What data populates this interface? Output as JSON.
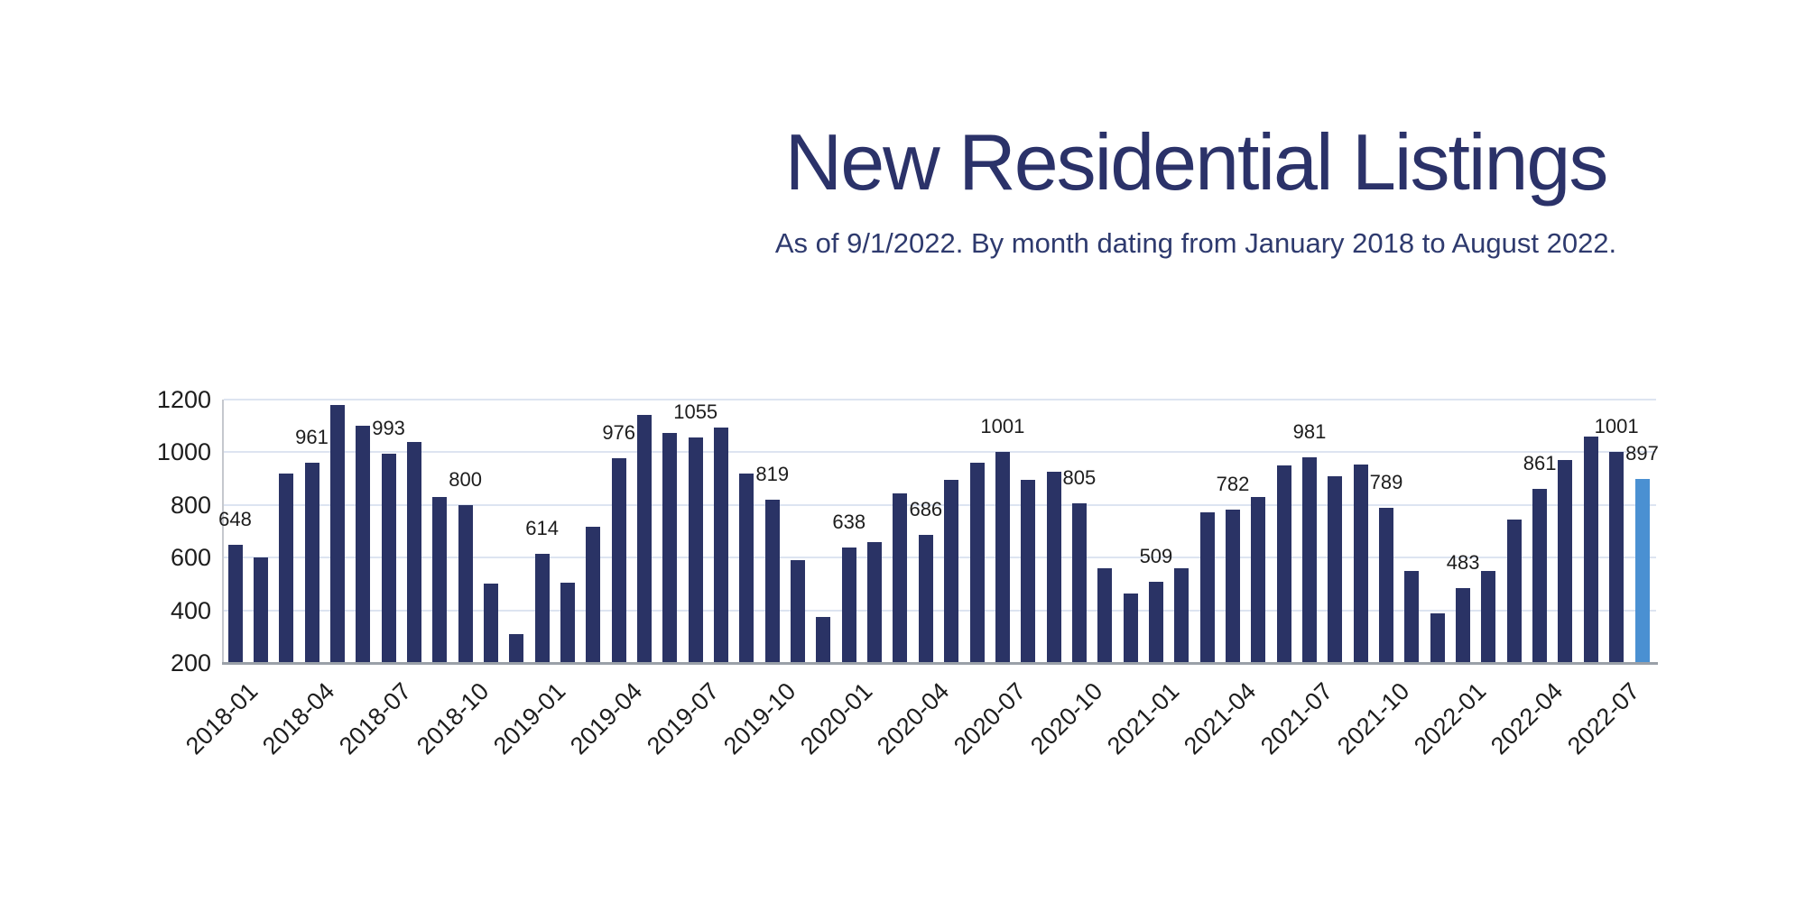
{
  "page": {
    "background": "#ffffff"
  },
  "header": {
    "title": "New Residential Listings",
    "subtitle": "As of 9/1/2022. By month dating from January 2018 to August 2022.",
    "title_color": "#2b3269",
    "subtitle_color": "#2e3a6e"
  },
  "chart_data": {
    "type": "bar",
    "title": "New Residential Listings",
    "subtitle": "As of 9/1/2022. By month dating from January 2018 to August 2022.",
    "x": [
      "2018-01",
      "2018-02",
      "2018-03",
      "2018-04",
      "2018-05",
      "2018-06",
      "2018-07",
      "2018-08",
      "2018-09",
      "2018-10",
      "2018-11",
      "2018-12",
      "2019-01",
      "2019-02",
      "2019-03",
      "2019-04",
      "2019-05",
      "2019-06",
      "2019-07",
      "2019-08",
      "2019-09",
      "2019-10",
      "2019-11",
      "2019-12",
      "2020-01",
      "2020-02",
      "2020-03",
      "2020-04",
      "2020-05",
      "2020-06",
      "2020-07",
      "2020-08",
      "2020-09",
      "2020-10",
      "2020-11",
      "2020-12",
      "2021-01",
      "2021-02",
      "2021-03",
      "2021-04",
      "2021-05",
      "2021-06",
      "2021-07",
      "2021-08",
      "2021-09",
      "2021-10",
      "2021-11",
      "2021-12",
      "2022-01",
      "2022-02",
      "2022-03",
      "2022-04",
      "2022-05",
      "2022-06",
      "2022-07",
      "2022-08"
    ],
    "values": [
      648,
      602,
      920,
      961,
      1180,
      1100,
      993,
      1040,
      830,
      800,
      500,
      310,
      614,
      505,
      718,
      976,
      1143,
      1072,
      1055,
      1095,
      920,
      819,
      590,
      375,
      638,
      660,
      845,
      686,
      895,
      960,
      1001,
      895,
      925,
      805,
      560,
      465,
      509,
      560,
      772,
      782,
      830,
      950,
      981,
      910,
      955,
      789,
      550,
      390,
      483,
      550,
      745,
      861,
      970,
      1058,
      1001,
      897
    ],
    "bar_labels": [
      {
        "index": 0,
        "text": "648"
      },
      {
        "index": 3,
        "text": "961"
      },
      {
        "index": 6,
        "text": "993"
      },
      {
        "index": 9,
        "text": "800"
      },
      {
        "index": 12,
        "text": "614"
      },
      {
        "index": 15,
        "text": "976"
      },
      {
        "index": 18,
        "text": "1055"
      },
      {
        "index": 21,
        "text": "819"
      },
      {
        "index": 24,
        "text": "638"
      },
      {
        "index": 27,
        "text": "686"
      },
      {
        "index": 30,
        "text": "1001"
      },
      {
        "index": 33,
        "text": "805"
      },
      {
        "index": 36,
        "text": "509"
      },
      {
        "index": 39,
        "text": "782"
      },
      {
        "index": 42,
        "text": "981"
      },
      {
        "index": 45,
        "text": "789"
      },
      {
        "index": 48,
        "text": "483"
      },
      {
        "index": 51,
        "text": "861"
      },
      {
        "index": 54,
        "text": "1001"
      },
      {
        "index": 55,
        "text": "897"
      }
    ],
    "x_tick_labels": [
      "2018-01",
      "2018-04",
      "2018-07",
      "2018-10",
      "2019-01",
      "2019-04",
      "2019-07",
      "2019-10",
      "2020-01",
      "2020-04",
      "2020-07",
      "2020-10",
      "2021-01",
      "2021-04",
      "2021-07",
      "2021-10",
      "2022-01",
      "2022-04",
      "2022-07"
    ],
    "x_tick_step": 3,
    "yticks": [
      200,
      400,
      600,
      800,
      1000,
      1200
    ],
    "ylim": [
      200,
      1200
    ],
    "xlabel": "",
    "ylabel": "",
    "grid": "horizontal",
    "legend": false,
    "highlight_index": 55,
    "colors": {
      "bar": "#2a3365",
      "highlight": "#4a90d2",
      "gridline": "#dde4f1",
      "baseline": "#9aa0a8",
      "axis_line": "#c5c8ce",
      "tick_text": "#1d1d1d"
    }
  }
}
